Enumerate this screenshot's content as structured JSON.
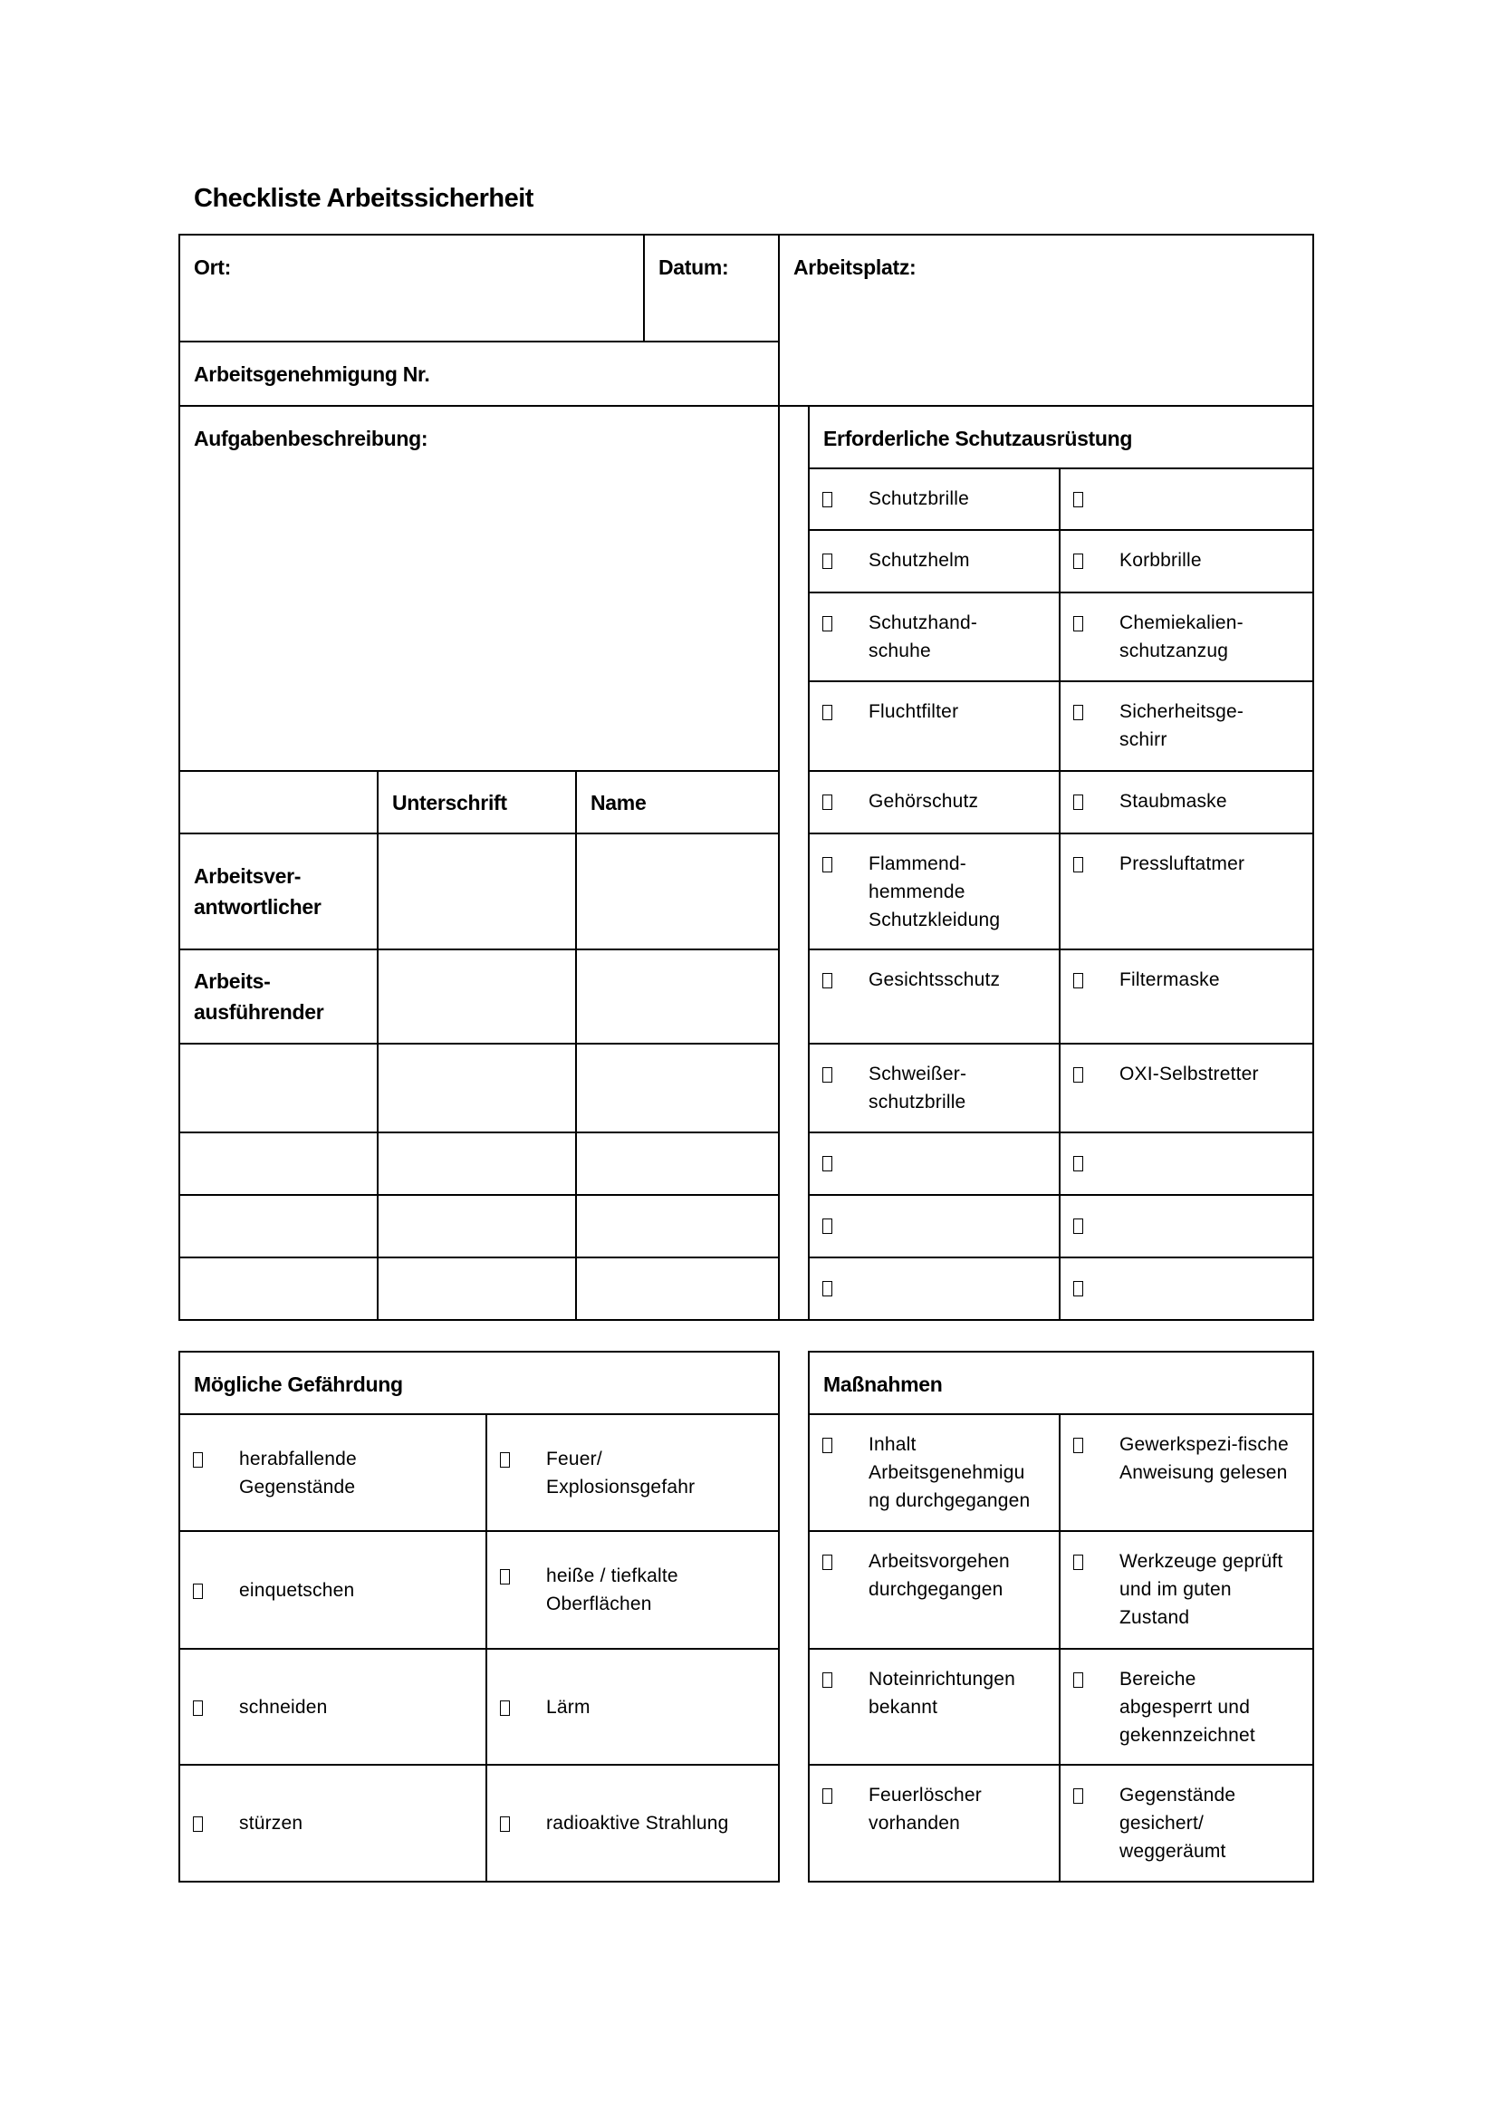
{
  "title": "Checkliste Arbeitssicherheit",
  "header": {
    "ort": "Ort:",
    "datum": "Datum:",
    "arbeitsplatz": "Arbeitsplatz:",
    "arbeitsgenehmigung": "Arbeitsgenehmigung Nr.",
    "aufgabenbeschreibung": "Aufgabenbeschreibung:"
  },
  "signatures": {
    "columns": [
      "",
      "Unterschrift",
      "Name"
    ],
    "rows": [
      "Arbeitsver-\nantwortlicher",
      "Arbeits-\nausführender",
      "",
      "",
      "",
      ""
    ]
  },
  "schutzausruestung": {
    "heading": "Erforderliche Schutzausrüstung",
    "rows": [
      [
        "Schutzbrille",
        ""
      ],
      [
        "Schutzhelm",
        "Korbbrille"
      ],
      [
        "Schutzhand-\nschuhe",
        "Chemiekalien-\nschutzanzug"
      ],
      [
        "Fluchtfilter",
        "Sicherheitsge-\nschirr"
      ],
      [
        "Gehörschutz",
        "Staubmaske"
      ],
      [
        "Flammend-\nhemmende\nSchutzkleidung",
        "Pressluftatmer"
      ],
      [
        "Gesichtsschutz",
        "Filtermaske"
      ],
      [
        "Schweißer-\nschutzbrille",
        "OXI-Selbstretter"
      ],
      [
        "",
        ""
      ],
      [
        "",
        ""
      ],
      [
        "",
        ""
      ]
    ]
  },
  "gefaehrdung": {
    "heading": "Mögliche Gefährdung",
    "rows": [
      [
        "herabfallende\nGegenstände",
        "Feuer/\nExplosionsgefahr"
      ],
      [
        "einquetschen",
        "heiße / tiefkalte\nOberflächen"
      ],
      [
        "schneiden",
        "Lärm"
      ],
      [
        "stürzen",
        "radioaktive  Strahlung"
      ]
    ]
  },
  "massnahmen": {
    "heading": "Maßnahmen",
    "rows": [
      [
        "Inhalt\nArbeitsgenehmigu\nng durchgegangen",
        "Gewerkspezi-fische\nAnweisung gelesen"
      ],
      [
        "Arbeitsvorgehen\ndurchgegangen",
        "Werkzeuge geprüft\nund im guten\nZustand"
      ],
      [
        "Noteinrichtungen\nbekannt",
        "Bereiche\nabgesperrt und\ngekennzeichnet"
      ],
      [
        "Feuerlöscher\nvorhanden",
        "Gegenstände\ngesichert/\nweggeräumt"
      ]
    ]
  }
}
